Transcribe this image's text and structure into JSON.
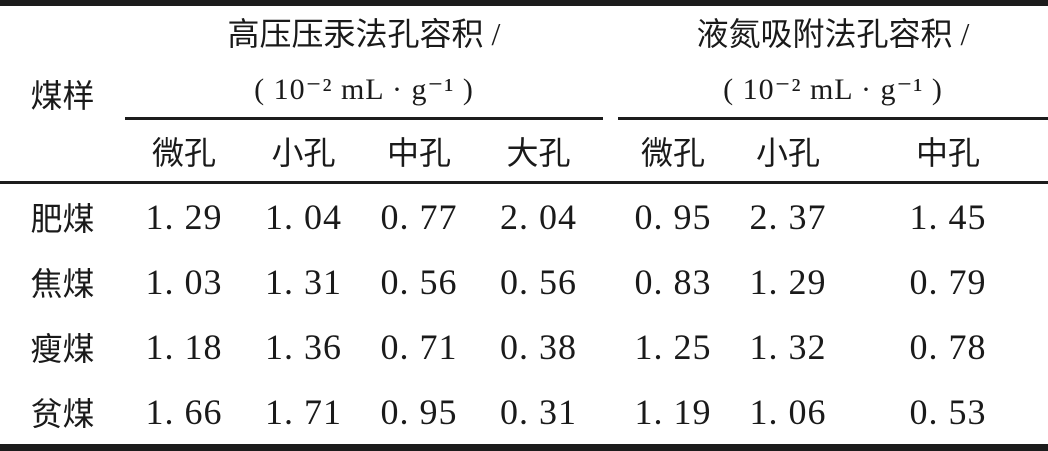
{
  "table": {
    "row_header": "煤样",
    "groups": [
      {
        "title": "高压压汞法孔容积 /",
        "unit": "( 10⁻² mL · g⁻¹ )",
        "columns": [
          "微孔",
          "小孔",
          "中孔",
          "大孔"
        ]
      },
      {
        "title": "液氮吸附法孔容积 /",
        "unit": "( 10⁻² mL · g⁻¹ )",
        "columns": [
          "微孔",
          "小孔",
          "中孔"
        ]
      }
    ],
    "rows": [
      {
        "label": "肥煤",
        "values": [
          "1. 29",
          "1. 04",
          "0. 77",
          "2. 04",
          "0. 95",
          "2. 37",
          "1. 45"
        ]
      },
      {
        "label": "焦煤",
        "values": [
          "1. 03",
          "1. 31",
          "0. 56",
          "0. 56",
          "0. 83",
          "1. 29",
          "0. 79"
        ]
      },
      {
        "label": "瘦煤",
        "values": [
          "1. 18",
          "1. 36",
          "0. 71",
          "0. 38",
          "1. 25",
          "1. 32",
          "0. 78"
        ]
      },
      {
        "label": "贫煤",
        "values": [
          "1. 66",
          "1. 71",
          "0. 95",
          "0. 31",
          "1. 19",
          "1. 06",
          "0. 53"
        ]
      }
    ]
  },
  "chart_data": {
    "type": "table",
    "title": "",
    "row_header": "煤样",
    "column_groups": [
      {
        "name": "高压压汞法孔容积 / (10⁻² mL·g⁻¹)",
        "columns": [
          "微孔",
          "小孔",
          "中孔",
          "大孔"
        ]
      },
      {
        "name": "液氮吸附法孔容积 / (10⁻² mL·g⁻¹)",
        "columns": [
          "微孔",
          "小孔",
          "中孔"
        ]
      }
    ],
    "rows": [
      {
        "label": "肥煤",
        "values": [
          1.29,
          1.04,
          0.77,
          2.04,
          0.95,
          2.37,
          1.45
        ]
      },
      {
        "label": "焦煤",
        "values": [
          1.03,
          1.31,
          0.56,
          0.56,
          0.83,
          1.29,
          0.79
        ]
      },
      {
        "label": "瘦煤",
        "values": [
          1.18,
          1.36,
          0.71,
          0.38,
          1.25,
          1.32,
          0.78
        ]
      },
      {
        "label": "贫煤",
        "values": [
          1.66,
          1.71,
          0.95,
          0.31,
          1.19,
          1.06,
          0.53
        ]
      }
    ],
    "colors": {
      "text": "#1a1a1a",
      "rule": "#1c1c1c",
      "background": "#ffffff"
    }
  }
}
